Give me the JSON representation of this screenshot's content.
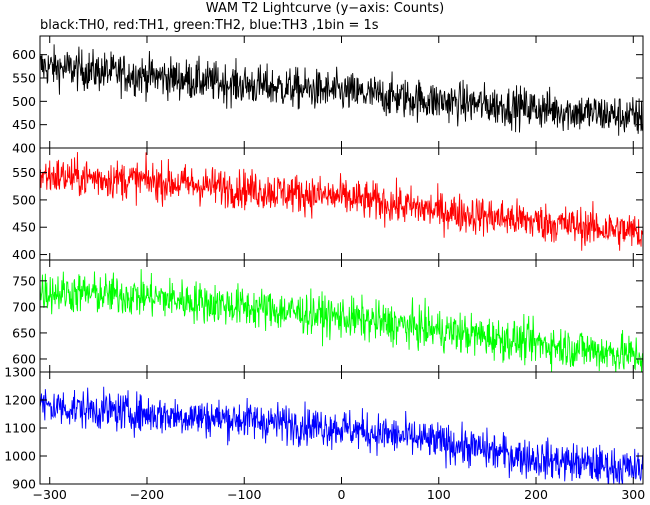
{
  "title": "WAM T2 Lightcurve (y−axis: Counts)",
  "subtitle": "black:TH0, red:TH1, green:TH2, blue:TH3 ,1bin = 1s",
  "chart_data": {
    "type": "line",
    "x_range": [
      -310,
      310
    ],
    "x_ticks": [
      -300,
      -200,
      -100,
      0,
      100,
      200,
      300
    ],
    "x_tick_labels": [
      "−300",
      "−200",
      "−100",
      "0",
      "100",
      "200",
      "300"
    ],
    "bin_seconds": 1,
    "panels": [
      {
        "color": "#000000",
        "ylim": [
          400,
          640
        ],
        "y_ticks": [
          400,
          450,
          500,
          550,
          600
        ],
        "y_tick_labels": [
          "400",
          "450",
          "500",
          "550",
          "600"
        ],
        "trend": [
          [
            -310,
            575
          ],
          [
            -200,
            555
          ],
          [
            -100,
            535
          ],
          [
            0,
            520
          ],
          [
            100,
            500
          ],
          [
            200,
            485
          ],
          [
            310,
            465
          ]
        ],
        "noise": 22
      },
      {
        "color": "#ff0000",
        "ylim": [
          390,
          595
        ],
        "y_ticks": [
          400,
          450,
          500,
          550
        ],
        "y_tick_labels": [
          "400",
          "450",
          "500",
          "550"
        ],
        "trend": [
          [
            -310,
            545
          ],
          [
            -200,
            535
          ],
          [
            -100,
            520
          ],
          [
            0,
            505
          ],
          [
            100,
            480
          ],
          [
            200,
            460
          ],
          [
            310,
            440
          ]
        ],
        "noise": 18
      },
      {
        "color": "#00ff00",
        "ylim": [
          575,
          790
        ],
        "y_ticks": [
          600,
          650,
          700,
          750
        ],
        "y_tick_labels": [
          "600",
          "650",
          "700",
          "750"
        ],
        "trend": [
          [
            -310,
            730
          ],
          [
            -200,
            720
          ],
          [
            -100,
            700
          ],
          [
            0,
            680
          ],
          [
            100,
            655
          ],
          [
            200,
            630
          ],
          [
            310,
            605
          ]
        ],
        "noise": 20
      },
      {
        "color": "#0000ff",
        "ylim": [
          900,
          1300
        ],
        "y_ticks": [
          900,
          1000,
          1100,
          1200,
          1300
        ],
        "y_tick_labels": [
          "900",
          "1000",
          "1100",
          "1200",
          "1300"
        ],
        "trend": [
          [
            -310,
            1180
          ],
          [
            -200,
            1150
          ],
          [
            -100,
            1130
          ],
          [
            0,
            1100
          ],
          [
            100,
            1050
          ],
          [
            200,
            990
          ],
          [
            310,
            950
          ]
        ],
        "noise": 35
      }
    ]
  }
}
